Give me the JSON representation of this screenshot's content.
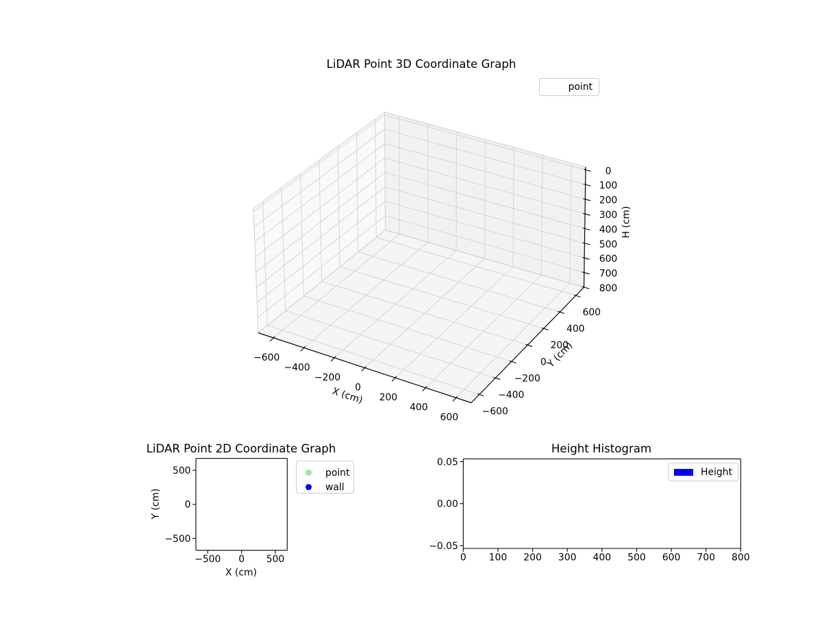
{
  "figure": {
    "background": "#ffffff"
  },
  "chart_data": [
    {
      "id": "lidar-3d",
      "type": "scatter",
      "projection": "3d",
      "title": "LiDAR Point 3D Coordinate Graph",
      "xlabel": "X (cm)",
      "ylabel": "Y (cm)",
      "zlabel": "H (cm)",
      "xlim": [
        -700,
        700
      ],
      "ylim": [
        -700,
        700
      ],
      "zlim": [
        800,
        -20
      ],
      "z_axis_inverted": true,
      "xticks": [
        -600,
        -400,
        -200,
        0,
        200,
        400,
        600
      ],
      "yticks": [
        -600,
        -400,
        -200,
        0,
        200,
        400,
        600
      ],
      "zticks": [
        0,
        100,
        200,
        300,
        400,
        500,
        600,
        700,
        800
      ],
      "grid": true,
      "legend": {
        "position": "upper right",
        "entries": [
          {
            "label": "point",
            "handle": "empty"
          }
        ]
      },
      "series": [
        {
          "name": "point",
          "points": []
        }
      ]
    },
    {
      "id": "lidar-2d",
      "type": "scatter",
      "title": "LiDAR Point 2D Coordinate Graph",
      "xlabel": "X (cm)",
      "ylabel": "Y (cm)",
      "xlim": [
        -675,
        675
      ],
      "ylim": [
        -675,
        675
      ],
      "xticks": [
        -500,
        0,
        500
      ],
      "yticks": [
        500,
        0,
        -500
      ],
      "grid": false,
      "legend": {
        "position": "outside right",
        "entries": [
          {
            "label": "point",
            "color": "#90EE90",
            "marker": "circle"
          },
          {
            "label": "wall",
            "color": "#0000FF",
            "marker": "circle"
          }
        ]
      },
      "series": [
        {
          "name": "point",
          "color": "#90EE90",
          "points": []
        },
        {
          "name": "wall",
          "color": "#0000FF",
          "points": []
        }
      ]
    },
    {
      "id": "height-histogram",
      "type": "bar",
      "title": "Height Histogram",
      "xlabel": "",
      "ylabel": "",
      "xlim": [
        0,
        800
      ],
      "ylim": [
        -0.0534,
        0.0534
      ],
      "xticks": [
        0,
        100,
        200,
        300,
        400,
        500,
        600,
        700,
        800
      ],
      "yticks": [
        0.05,
        0,
        -0.05
      ],
      "ytick_labels": [
        "0.05",
        "0.00",
        "−0.05"
      ],
      "grid": false,
      "legend": {
        "position": "upper right",
        "entries": [
          {
            "label": "Height",
            "color": "#0000FF",
            "marker": "rect"
          }
        ]
      },
      "series": [
        {
          "name": "Height",
          "color": "#0000FF",
          "values": []
        }
      ]
    }
  ]
}
